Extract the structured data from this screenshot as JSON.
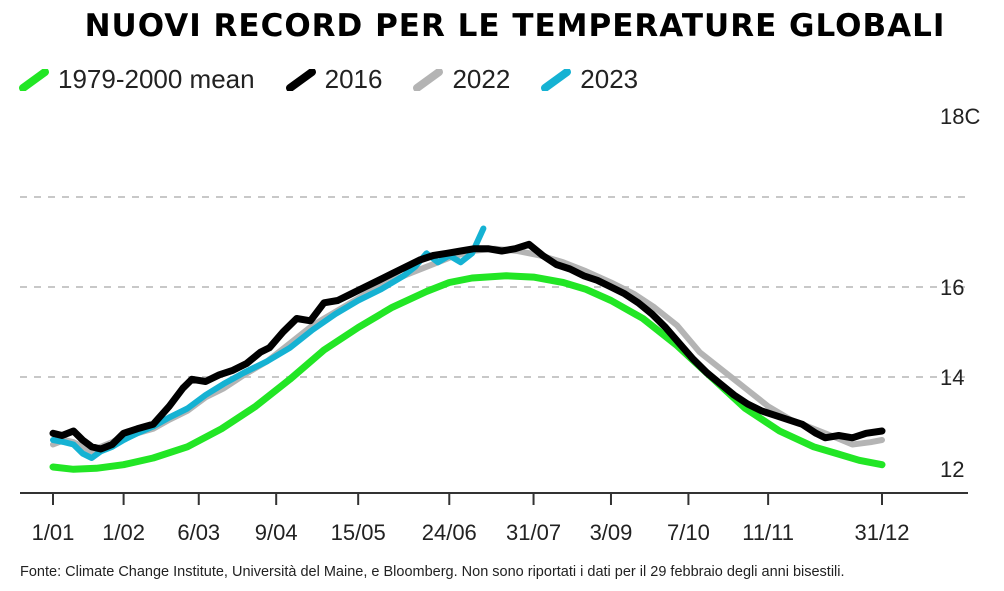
{
  "title": "NUOVI RECORD PER LE TEMPERATURE GLOBALI",
  "source": "Fonte: Climate Change Institute, Università del Maine, e Bloomberg. Non sono riportati i dati per il 29 febbraio degli anni bisestili.",
  "chart_data": {
    "type": "line",
    "title": "NUOVI RECORD PER LE TEMPERATURE GLOBALI",
    "xlabel": "",
    "ylabel": "",
    "x_ticks": [
      {
        "label": "1/01",
        "day": 1
      },
      {
        "label": "1/02",
        "day": 32
      },
      {
        "label": "6/03",
        "day": 65
      },
      {
        "label": "9/04",
        "day": 99
      },
      {
        "label": "15/05",
        "day": 135
      },
      {
        "label": "24/06",
        "day": 175
      },
      {
        "label": "31/07",
        "day": 212
      },
      {
        "label": "3/09",
        "day": 246
      },
      {
        "label": "7/10",
        "day": 280
      },
      {
        "label": "11/11",
        "day": 315
      },
      {
        "label": "31/12",
        "day": 365
      }
    ],
    "y_ticks": [
      {
        "label": "12",
        "value": 12
      },
      {
        "label": "14",
        "value": 14
      },
      {
        "label": "16",
        "value": 16
      },
      {
        "label": "18C",
        "value": 18
      }
    ],
    "ylim": [
      11.6,
      18.2
    ],
    "xlim": [
      1,
      365
    ],
    "grid": "horizontal dashed",
    "legend": "top-left",
    "series": [
      {
        "name": "1979-2000 mean",
        "color": "#22e625",
        "x": [
          1,
          10,
          20,
          32,
          45,
          60,
          75,
          90,
          105,
          120,
          135,
          150,
          165,
          175,
          185,
          200,
          212,
          225,
          235,
          246,
          260,
          275,
          290,
          305,
          320,
          335,
          345,
          355,
          365
        ],
        "y": [
          12.0,
          11.95,
          11.97,
          12.05,
          12.2,
          12.45,
          12.85,
          13.35,
          13.95,
          14.6,
          15.1,
          15.55,
          15.9,
          16.1,
          16.2,
          16.25,
          16.22,
          16.1,
          15.95,
          15.7,
          15.3,
          14.7,
          14.0,
          13.3,
          12.8,
          12.45,
          12.3,
          12.15,
          12.05
        ]
      },
      {
        "name": "2022",
        "color": "#b4b4b4",
        "x": [
          1,
          6,
          10,
          14,
          18,
          22,
          27,
          32,
          38,
          45,
          52,
          60,
          68,
          76,
          85,
          95,
          105,
          115,
          125,
          135,
          145,
          155,
          165,
          175,
          185,
          195,
          205,
          215,
          225,
          235,
          246,
          256,
          265,
          275,
          285,
          295,
          305,
          315,
          325,
          335,
          345,
          352,
          360,
          365
        ],
        "y": [
          12.5,
          12.6,
          12.55,
          12.45,
          12.35,
          12.45,
          12.55,
          12.7,
          12.75,
          12.85,
          13.05,
          13.25,
          13.55,
          13.75,
          14.05,
          14.35,
          14.75,
          15.15,
          15.45,
          15.75,
          16.05,
          16.25,
          16.45,
          16.65,
          16.8,
          16.85,
          16.8,
          16.7,
          16.55,
          16.35,
          16.1,
          15.85,
          15.55,
          15.15,
          14.55,
          14.15,
          13.75,
          13.35,
          13.05,
          12.85,
          12.65,
          12.5,
          12.55,
          12.6
        ]
      },
      {
        "name": "2023",
        "color": "#15b2d3",
        "x": [
          1,
          6,
          10,
          14,
          18,
          22,
          27,
          32,
          38,
          45,
          52,
          60,
          68,
          76,
          85,
          95,
          105,
          115,
          125,
          135,
          145,
          155,
          160,
          165,
          170,
          175,
          180,
          185,
          190
        ],
        "y": [
          12.6,
          12.55,
          12.5,
          12.3,
          12.2,
          12.35,
          12.45,
          12.6,
          12.75,
          12.9,
          13.1,
          13.3,
          13.6,
          13.85,
          14.1,
          14.35,
          14.65,
          15.05,
          15.4,
          15.7,
          15.95,
          16.25,
          16.45,
          16.75,
          16.55,
          16.7,
          16.55,
          16.75,
          17.3
        ]
      },
      {
        "name": "2016",
        "color": "#000000",
        "x": [
          1,
          5,
          10,
          14,
          18,
          22,
          27,
          32,
          38,
          45,
          52,
          58,
          62,
          68,
          74,
          80,
          86,
          92,
          96,
          102,
          108,
          114,
          120,
          126,
          132,
          138,
          144,
          150,
          156,
          162,
          168,
          174,
          180,
          186,
          192,
          198,
          204,
          210,
          216,
          222,
          228,
          234,
          240,
          246,
          252,
          258,
          264,
          270,
          276,
          282,
          288,
          294,
          300,
          306,
          312,
          318,
          324,
          330,
          336,
          340,
          346,
          352,
          358,
          365
        ],
        "y": [
          12.75,
          12.7,
          12.8,
          12.6,
          12.45,
          12.4,
          12.5,
          12.75,
          12.85,
          12.95,
          13.35,
          13.75,
          13.95,
          13.9,
          14.05,
          14.15,
          14.3,
          14.55,
          14.65,
          15.0,
          15.3,
          15.25,
          15.65,
          15.7,
          15.85,
          16.0,
          16.15,
          16.3,
          16.45,
          16.6,
          16.7,
          16.75,
          16.8,
          16.85,
          16.85,
          16.8,
          16.85,
          16.95,
          16.7,
          16.5,
          16.4,
          16.25,
          16.15,
          16.0,
          15.85,
          15.65,
          15.4,
          15.1,
          14.75,
          14.4,
          14.1,
          13.85,
          13.6,
          13.4,
          13.25,
          13.15,
          13.05,
          12.95,
          12.75,
          12.65,
          12.7,
          12.65,
          12.75,
          12.8
        ]
      }
    ]
  },
  "colors": {
    "grid": "#c8c8c8",
    "axis": "#333333"
  }
}
